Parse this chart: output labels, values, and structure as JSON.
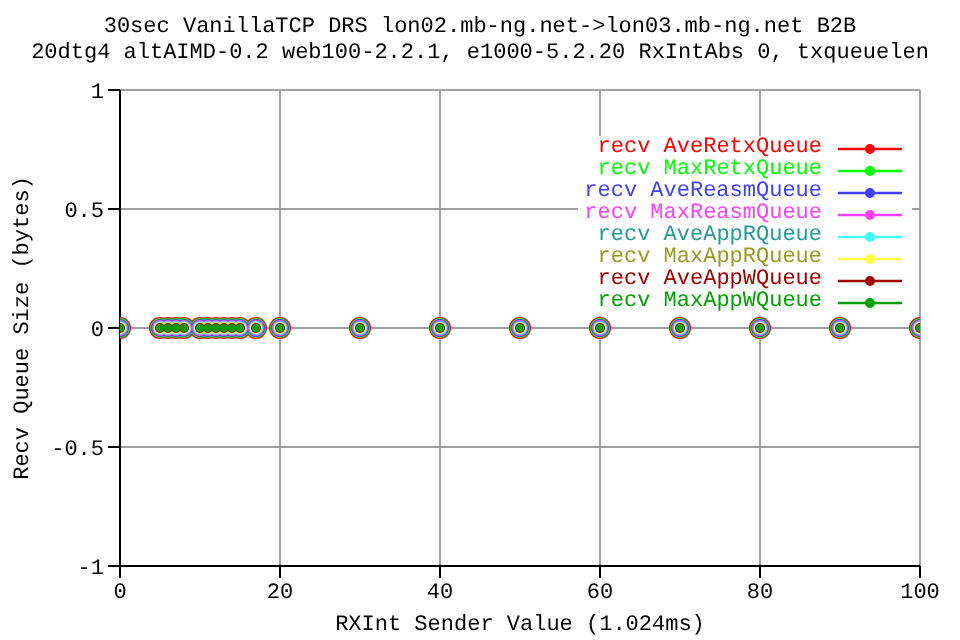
{
  "chart_data": {
    "type": "scatter",
    "title": "30sec VanillaTCP DRS lon02.mb-ng.net->lon03.mb-ng.net B2B",
    "subtitle": "20dtg4 altAIMD-0.2 web100-2.2.1, e1000-5.2.20 RxIntAbs 0, txqueuelen",
    "xlabel": "RXInt Sender Value (1.024ms)",
    "ylabel": "Recv Queue Size (bytes)",
    "x": [
      0,
      5,
      6,
      7,
      8,
      10,
      11,
      12,
      13,
      14,
      15,
      17,
      20,
      30,
      40,
      50,
      60,
      70,
      80,
      90,
      100
    ],
    "series": [
      {
        "name": "recv AveRetxQueue",
        "color": "#ff0000",
        "values": [
          0,
          0,
          0,
          0,
          0,
          0,
          0,
          0,
          0,
          0,
          0,
          0,
          0,
          0,
          0,
          0,
          0,
          0,
          0,
          0,
          0
        ]
      },
      {
        "name": "recv MaxRetxQueue",
        "color": "#00ff00",
        "values": [
          0,
          0,
          0,
          0,
          0,
          0,
          0,
          0,
          0,
          0,
          0,
          0,
          0,
          0,
          0,
          0,
          0,
          0,
          0,
          0,
          0
        ]
      },
      {
        "name": "recv AveReasmQueue",
        "color": "#4040ff",
        "values": [
          0,
          0,
          0,
          0,
          0,
          0,
          0,
          0,
          0,
          0,
          0,
          0,
          0,
          0,
          0,
          0,
          0,
          0,
          0,
          0,
          0
        ]
      },
      {
        "name": "recv MaxReasmQueue",
        "color": "#ff40ff",
        "values": [
          0,
          0,
          0,
          0,
          0,
          0,
          0,
          0,
          0,
          0,
          0,
          0,
          0,
          0,
          0,
          0,
          0,
          0,
          0,
          0,
          0
        ]
      },
      {
        "name": "recv AveAppRQueue",
        "color": "#40ffff",
        "values": [
          0,
          0,
          0,
          0,
          0,
          0,
          0,
          0,
          0,
          0,
          0,
          0,
          0,
          0,
          0,
          0,
          0,
          0,
          0,
          0,
          0
        ]
      },
      {
        "name": "recv MaxAppRQueue",
        "color": "#ffff40",
        "values": [
          0,
          0,
          0,
          0,
          0,
          0,
          0,
          0,
          0,
          0,
          0,
          0,
          0,
          0,
          0,
          0,
          0,
          0,
          0,
          0,
          0
        ]
      },
      {
        "name": "recv AveAppWQueue",
        "color": "#a00000",
        "values": [
          0,
          0,
          0,
          0,
          0,
          0,
          0,
          0,
          0,
          0,
          0,
          0,
          0,
          0,
          0,
          0,
          0,
          0,
          0,
          0,
          0
        ]
      },
      {
        "name": "recv MaxAppWQueue",
        "color": "#00a000",
        "values": [
          0,
          0,
          0,
          0,
          0,
          0,
          0,
          0,
          0,
          0,
          0,
          0,
          0,
          0,
          0,
          0,
          0,
          0,
          0,
          0,
          0
        ]
      }
    ],
    "xlim": [
      0,
      100
    ],
    "xticks": [
      0,
      20,
      40,
      60,
      80,
      100
    ],
    "ylim": [
      -1,
      1
    ],
    "yticks": [
      -1,
      -0.5,
      0,
      0.5,
      1
    ],
    "grid": true,
    "legend": "top right",
    "marker": "circle"
  }
}
